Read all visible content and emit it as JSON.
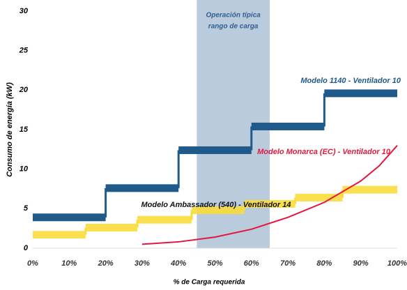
{
  "chart_data": {
    "type": "step",
    "xlabel": "% de Carga requerida",
    "ylabel": "Consumo de energía (kW)",
    "xlim": [
      0,
      100
    ],
    "ylim": [
      0,
      30
    ],
    "xticks": [
      {
        "value": 0,
        "label": "0%"
      },
      {
        "value": 10,
        "label": "10%"
      },
      {
        "value": 20,
        "label": "20%"
      },
      {
        "value": 30,
        "label": "30%"
      },
      {
        "value": 40,
        "label": "40%"
      },
      {
        "value": 50,
        "label": "50%"
      },
      {
        "value": 60,
        "label": "60%"
      },
      {
        "value": 70,
        "label": "70%"
      },
      {
        "value": 80,
        "label": "80%"
      },
      {
        "value": 90,
        "label": "90%"
      },
      {
        "value": 100,
        "label": "100%"
      }
    ],
    "yticks": [
      0,
      5,
      10,
      15,
      20,
      25,
      30
    ],
    "shade": {
      "range": [
        45,
        65
      ],
      "color": "#b9cbdc",
      "label": [
        "Operación típica",
        "rango de carga"
      ]
    },
    "series": [
      {
        "name": "Modelo 1140 - Ventilador 10",
        "color": "#1f5a8a",
        "style": "step",
        "x": [
          0,
          20,
          40,
          60,
          80
        ],
        "x_end": [
          20,
          40,
          60,
          80,
          100
        ],
        "values": [
          3.9,
          7.6,
          12.4,
          15.4,
          19.6
        ]
      },
      {
        "name": "Modelo Ambassador (540) - Ventilador 14",
        "color": "#f9dc3c",
        "style": "step",
        "label_color": "#111111",
        "x": [
          0,
          14.5,
          28.7,
          43.6,
          58,
          72,
          85
        ],
        "x_end": [
          14.5,
          28.7,
          43.6,
          58,
          72,
          85,
          100
        ],
        "values": [
          1.7,
          2.6,
          3.6,
          4.8,
          5.6,
          6.4,
          7.4
        ]
      },
      {
        "name": "Modelo Monarca (EC) - Ventilador 10",
        "color": "#e3173e",
        "style": "line",
        "x": [
          30,
          40,
          50,
          60,
          70,
          80,
          90,
          95,
          100
        ],
        "values": [
          0.5,
          0.8,
          1.4,
          2.4,
          3.9,
          5.8,
          8.5,
          10.4,
          13
        ]
      }
    ]
  }
}
